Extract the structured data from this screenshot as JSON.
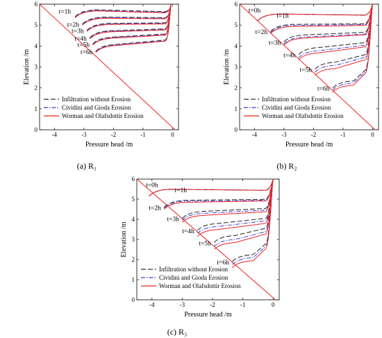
{
  "chart_data": [
    {
      "type": "line",
      "caption": "(a) R₁",
      "xlabel": "Pressure head /m",
      "ylabel": "Elevation /m",
      "xlim": [
        -4.5,
        0.2
      ],
      "ylim": [
        0,
        6
      ],
      "xticks": [
        "-4",
        "-3",
        "-2",
        "-1",
        "0"
      ],
      "yticks": [
        "0",
        "1",
        "2",
        "3",
        "4",
        "5",
        "6"
      ],
      "legend": [
        "Infiltration without Erosion",
        "Cividini and Gioda  Erosion",
        "Worman and Olafsdottir Erosion"
      ],
      "legend_placement": "bottom-left",
      "annotations": [
        "t=1h",
        "t=2h",
        "t=3h",
        "t=4h",
        "t=5h",
        "t=6h"
      ],
      "series": [
        {
          "name": "Infiltration without Erosion",
          "curves": [
            {
              "time": "t=1h",
              "front": [
                -3.3,
                5.4
              ],
              "top": [
                -0.05,
                6.0
              ]
            },
            {
              "time": "t=2h",
              "front": [
                -3.05,
                5.05
              ],
              "top": [
                -0.05,
                6.0
              ]
            },
            {
              "time": "t=3h",
              "front": [
                -2.9,
                4.75
              ],
              "top": [
                -0.05,
                6.0
              ]
            },
            {
              "time": "t=4h",
              "front": [
                -2.8,
                4.4
              ],
              "top": [
                -0.05,
                6.0
              ]
            },
            {
              "time": "t=5h",
              "front": [
                -2.7,
                4.1
              ],
              "top": [
                -0.05,
                6.0
              ]
            },
            {
              "time": "t=6h",
              "front": [
                -2.6,
                3.75
              ],
              "top": [
                -0.05,
                6.0
              ]
            }
          ]
        },
        {
          "name": "Cividini and Gioda  Erosion",
          "same_as": "Infiltration without Erosion"
        },
        {
          "name": "Worman and Olafsdottir Erosion",
          "same_as": "Infiltration without Erosion"
        }
      ],
      "initial_line": {
        "from": [
          -4.5,
          6
        ],
        "to": [
          0,
          0
        ]
      }
    },
    {
      "type": "line",
      "caption": "(b) R₂",
      "xlabel": "Pressure head /m",
      "ylabel": "Elevation /m",
      "xlim": [
        -4.5,
        0.2
      ],
      "ylim": [
        0,
        6
      ],
      "xticks": [
        "-4",
        "-3",
        "-2",
        "-1",
        "0"
      ],
      "yticks": [
        "0",
        "1",
        "2",
        "3",
        "4",
        "5",
        "6"
      ],
      "legend": [
        "Infiltration without Erosion",
        "Cividini and Gioda  Erosion",
        "Worman and Olafsdottir Erosion"
      ],
      "legend_placement": "bottom-left",
      "annotations": [
        "t=0h",
        "t=1h",
        "t=2h",
        "t=3h",
        "t=4h",
        "t=5h",
        "t=6h"
      ],
      "series": [
        {
          "name": "Infiltration without Erosion",
          "curves": [
            {
              "time": "t=1h",
              "front": [
                -3.9,
                5.2
              ],
              "top": [
                0.0,
                6.0
              ]
            },
            {
              "time": "t=2h",
              "front": [
                -3.45,
                4.7
              ],
              "top": [
                0.0,
                6.0
              ]
            },
            {
              "time": "t=3h",
              "front": [
                -3.0,
                4.2
              ],
              "top": [
                0.0,
                6.0
              ]
            },
            {
              "time": "t=4h",
              "front": [
                -2.5,
                3.6
              ],
              "top": [
                0.0,
                6.0
              ]
            },
            {
              "time": "t=5h",
              "front": [
                -1.95,
                2.9
              ],
              "top": [
                0.0,
                6.0
              ]
            },
            {
              "time": "t=6h",
              "front": [
                -1.35,
                2.0
              ],
              "top": [
                0.0,
                6.0
              ]
            }
          ]
        },
        {
          "name": "Cividini and Gioda  Erosion",
          "curves": [
            {
              "time": "t=1h",
              "front": [
                -3.9,
                5.2
              ],
              "top": [
                0.0,
                6.0
              ]
            },
            {
              "time": "t=2h",
              "front": [
                -3.45,
                4.65
              ],
              "top": [
                0.0,
                6.0
              ]
            },
            {
              "time": "t=3h",
              "front": [
                -3.0,
                4.1
              ],
              "top": [
                0.0,
                6.0
              ]
            },
            {
              "time": "t=4h",
              "front": [
                -2.5,
                3.45
              ],
              "top": [
                0.0,
                6.0
              ]
            },
            {
              "time": "t=5h",
              "front": [
                -1.95,
                2.75
              ],
              "top": [
                0.0,
                6.0
              ]
            },
            {
              "time": "t=6h",
              "front": [
                -1.35,
                1.9
              ],
              "top": [
                0.0,
                6.0
              ]
            }
          ]
        },
        {
          "name": "Worman and Olafsdottir Erosion",
          "curves": [
            {
              "time": "t=1h",
              "front": [
                -3.9,
                5.2
              ],
              "top": [
                0.0,
                6.0
              ]
            },
            {
              "time": "t=2h",
              "front": [
                -3.45,
                4.6
              ],
              "top": [
                0.0,
                6.0
              ]
            },
            {
              "time": "t=3h",
              "front": [
                -3.0,
                4.05
              ],
              "top": [
                0.0,
                6.0
              ]
            },
            {
              "time": "t=4h",
              "front": [
                -2.5,
                3.35
              ],
              "top": [
                0.0,
                6.0
              ]
            },
            {
              "time": "t=5h",
              "front": [
                -1.95,
                2.6
              ],
              "top": [
                0.0,
                6.0
              ]
            },
            {
              "time": "t=6h",
              "front": [
                -1.35,
                1.8
              ],
              "top": [
                0.0,
                6.0
              ]
            }
          ]
        }
      ],
      "initial_line": {
        "from": [
          -4.5,
          6
        ],
        "to": [
          0,
          0
        ]
      }
    },
    {
      "type": "line",
      "caption": "(c) R₃",
      "xlabel": "Pressure head /m",
      "ylabel": "Elevation /m",
      "xlim": [
        -4.5,
        0.2
      ],
      "ylim": [
        0,
        6
      ],
      "xticks": [
        "-4",
        "-3",
        "-2",
        "-1",
        "0"
      ],
      "yticks": [
        "0",
        "1",
        "2",
        "3",
        "4",
        "5",
        "6"
      ],
      "legend": [
        "Infiltration without Erosion",
        "Cividini and Gioda  Erosion",
        "Worman and Olafsdottir Erosion"
      ],
      "legend_placement": "bottom-left",
      "annotations": [
        "t=0h",
        "t=1h",
        "t=2h",
        "t=3h",
        "t=4h",
        "t=5h",
        "t=6h"
      ],
      "series": [
        {
          "name": "Infiltration without Erosion",
          "curves": [
            {
              "time": "t=1h",
              "front": [
                -4.1,
                5.15
              ],
              "top": [
                0.0,
                6.0
              ]
            },
            {
              "time": "t=2h",
              "front": [
                -3.6,
                4.6
              ],
              "top": [
                0.0,
                6.0
              ]
            },
            {
              "time": "t=3h",
              "front": [
                -3.0,
                4.05
              ],
              "top": [
                0.0,
                6.0
              ]
            },
            {
              "time": "t=4h",
              "front": [
                -2.5,
                3.45
              ],
              "top": [
                0.0,
                6.0
              ]
            },
            {
              "time": "t=5h",
              "front": [
                -1.95,
                2.85
              ],
              "top": [
                0.0,
                6.0
              ]
            },
            {
              "time": "t=6h",
              "front": [
                -1.35,
                1.9
              ],
              "top": [
                0.0,
                6.0
              ]
            }
          ]
        },
        {
          "name": "Cividini and Gioda  Erosion",
          "curves": [
            {
              "time": "t=1h",
              "front": [
                -4.1,
                5.15
              ],
              "top": [
                0.0,
                6.0
              ]
            },
            {
              "time": "t=2h",
              "front": [
                -3.6,
                4.55
              ],
              "top": [
                0.0,
                6.0
              ]
            },
            {
              "time": "t=3h",
              "front": [
                -3.0,
                3.95
              ],
              "top": [
                0.0,
                6.0
              ]
            },
            {
              "time": "t=4h",
              "front": [
                -2.5,
                3.3
              ],
              "top": [
                0.0,
                6.0
              ]
            },
            {
              "time": "t=5h",
              "front": [
                -1.95,
                2.65
              ],
              "top": [
                0.0,
                6.0
              ]
            },
            {
              "time": "t=6h",
              "front": [
                -1.35,
                1.75
              ],
              "top": [
                0.0,
                6.0
              ]
            }
          ]
        },
        {
          "name": "Worman and Olafsdottir Erosion",
          "curves": [
            {
              "time": "t=1h",
              "front": [
                -4.1,
                5.15
              ],
              "top": [
                0.0,
                6.0
              ]
            },
            {
              "time": "t=2h",
              "front": [
                -3.6,
                4.5
              ],
              "top": [
                0.0,
                6.0
              ]
            },
            {
              "time": "t=3h",
              "front": [
                -3.0,
                3.85
              ],
              "top": [
                0.0,
                6.0
              ]
            },
            {
              "time": "t=4h",
              "front": [
                -2.5,
                3.15
              ],
              "top": [
                0.0,
                6.0
              ]
            },
            {
              "time": "t=5h",
              "front": [
                -1.95,
                2.5
              ],
              "top": [
                0.0,
                6.0
              ]
            },
            {
              "time": "t=6h",
              "front": [
                -1.35,
                1.6
              ],
              "top": [
                0.0,
                6.0
              ]
            }
          ]
        }
      ],
      "initial_line": {
        "from": [
          -4.5,
          6
        ],
        "to": [
          0,
          0
        ]
      }
    }
  ],
  "colors": {
    "series1": "#333333",
    "series2": "#3b3bd6",
    "series3": "#ee2222",
    "initial": "#ee2222"
  }
}
